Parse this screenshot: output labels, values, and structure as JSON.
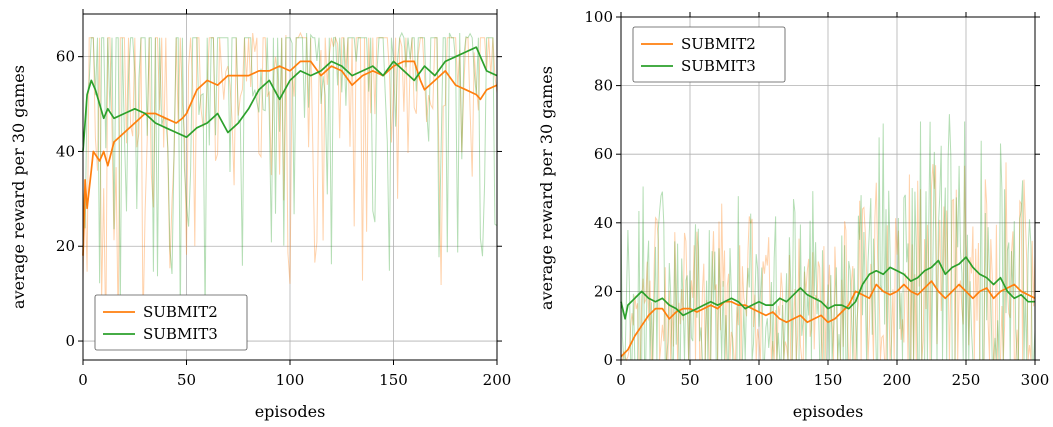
{
  "chart_data": [
    {
      "type": "line",
      "xlabel": "episodes",
      "ylabel": "average reward per 30 games",
      "xlim": [
        0,
        200
      ],
      "ylim": [
        -4,
        69
      ],
      "xticks": [
        0,
        50,
        100,
        150,
        200
      ],
      "yticks": [
        0,
        20,
        40,
        60
      ],
      "grid": true,
      "legend_position": "bottom-left",
      "series": [
        {
          "name": "SUBMIT2",
          "color": "#ff7f0e",
          "smoothed": [
            [
              0,
              18
            ],
            [
              1,
              34
            ],
            [
              2,
              28
            ],
            [
              4,
              36
            ],
            [
              5,
              40
            ],
            [
              8,
              38
            ],
            [
              10,
              40
            ],
            [
              12,
              37
            ],
            [
              15,
              42
            ],
            [
              20,
              44
            ],
            [
              25,
              46
            ],
            [
              30,
              48
            ],
            [
              35,
              48
            ],
            [
              40,
              47
            ],
            [
              45,
              46
            ],
            [
              48,
              47
            ],
            [
              50,
              48
            ],
            [
              55,
              53
            ],
            [
              60,
              55
            ],
            [
              65,
              54
            ],
            [
              70,
              56
            ],
            [
              75,
              56
            ],
            [
              80,
              56
            ],
            [
              85,
              57
            ],
            [
              90,
              57
            ],
            [
              95,
              58
            ],
            [
              100,
              57
            ],
            [
              105,
              59
            ],
            [
              110,
              59
            ],
            [
              115,
              56
            ],
            [
              120,
              58
            ],
            [
              125,
              57
            ],
            [
              130,
              54
            ],
            [
              135,
              56
            ],
            [
              140,
              57
            ],
            [
              145,
              56
            ],
            [
              150,
              58
            ],
            [
              155,
              59
            ],
            [
              160,
              59
            ],
            [
              163,
              55
            ],
            [
              165,
              53
            ],
            [
              170,
              55
            ],
            [
              175,
              57
            ],
            [
              180,
              54
            ],
            [
              185,
              53
            ],
            [
              190,
              52
            ],
            [
              192,
              51
            ],
            [
              195,
              53
            ],
            [
              200,
              54
            ]
          ]
        },
        {
          "name": "SUBMIT3",
          "color": "#2ca02c",
          "smoothed": [
            [
              0,
              40
            ],
            [
              2,
              52
            ],
            [
              4,
              55
            ],
            [
              6,
              53
            ],
            [
              8,
              50
            ],
            [
              10,
              47
            ],
            [
              12,
              49
            ],
            [
              15,
              47
            ],
            [
              20,
              48
            ],
            [
              25,
              49
            ],
            [
              30,
              48
            ],
            [
              35,
              46
            ],
            [
              40,
              45
            ],
            [
              45,
              44
            ],
            [
              50,
              43
            ],
            [
              55,
              45
            ],
            [
              60,
              46
            ],
            [
              65,
              48
            ],
            [
              70,
              44
            ],
            [
              75,
              46
            ],
            [
              80,
              49
            ],
            [
              85,
              53
            ],
            [
              90,
              55
            ],
            [
              95,
              51
            ],
            [
              100,
              55
            ],
            [
              105,
              57
            ],
            [
              110,
              56
            ],
            [
              115,
              57
            ],
            [
              120,
              59
            ],
            [
              125,
              58
            ],
            [
              130,
              56
            ],
            [
              135,
              57
            ],
            [
              140,
              58
            ],
            [
              145,
              56
            ],
            [
              150,
              59
            ],
            [
              155,
              57
            ],
            [
              160,
              55
            ],
            [
              165,
              58
            ],
            [
              170,
              56
            ],
            [
              175,
              59
            ],
            [
              180,
              60
            ],
            [
              185,
              61
            ],
            [
              190,
              62
            ],
            [
              195,
              57
            ],
            [
              200,
              56
            ]
          ]
        }
      ]
    },
    {
      "type": "line",
      "xlabel": "episodes",
      "ylabel": "average reward per 30 games",
      "xlim": [
        0,
        300
      ],
      "ylim": [
        0,
        100
      ],
      "xticks": [
        0,
        50,
        100,
        150,
        200,
        250,
        300
      ],
      "yticks": [
        0,
        20,
        40,
        60,
        80,
        100
      ],
      "grid": true,
      "legend_position": "top-left",
      "series": [
        {
          "name": "SUBMIT2",
          "color": "#ff7f0e",
          "smoothed": [
            [
              0,
              1
            ],
            [
              5,
              3
            ],
            [
              10,
              7
            ],
            [
              15,
              10
            ],
            [
              20,
              13
            ],
            [
              25,
              15
            ],
            [
              30,
              15
            ],
            [
              35,
              12
            ],
            [
              40,
              14
            ],
            [
              45,
              15
            ],
            [
              50,
              15
            ],
            [
              55,
              14
            ],
            [
              60,
              15
            ],
            [
              65,
              16
            ],
            [
              70,
              15
            ],
            [
              75,
              17
            ],
            [
              80,
              17
            ],
            [
              85,
              16
            ],
            [
              90,
              16
            ],
            [
              95,
              15
            ],
            [
              100,
              14
            ],
            [
              105,
              13
            ],
            [
              110,
              14
            ],
            [
              115,
              12
            ],
            [
              120,
              11
            ],
            [
              125,
              12
            ],
            [
              130,
              13
            ],
            [
              135,
              11
            ],
            [
              140,
              12
            ],
            [
              145,
              13
            ],
            [
              150,
              11
            ],
            [
              155,
              12
            ],
            [
              160,
              14
            ],
            [
              165,
              16
            ],
            [
              170,
              20
            ],
            [
              175,
              19
            ],
            [
              180,
              18
            ],
            [
              185,
              22
            ],
            [
              190,
              20
            ],
            [
              195,
              19
            ],
            [
              200,
              20
            ],
            [
              205,
              22
            ],
            [
              210,
              20
            ],
            [
              215,
              19
            ],
            [
              220,
              21
            ],
            [
              225,
              23
            ],
            [
              230,
              20
            ],
            [
              235,
              18
            ],
            [
              240,
              20
            ],
            [
              245,
              22
            ],
            [
              250,
              20
            ],
            [
              255,
              18
            ],
            [
              260,
              20
            ],
            [
              265,
              21
            ],
            [
              270,
              18
            ],
            [
              275,
              20
            ],
            [
              280,
              21
            ],
            [
              285,
              22
            ],
            [
              290,
              20
            ],
            [
              295,
              19
            ],
            [
              300,
              18
            ]
          ]
        },
        {
          "name": "SUBMIT3",
          "color": "#2ca02c",
          "smoothed": [
            [
              0,
              17
            ],
            [
              3,
              12
            ],
            [
              5,
              16
            ],
            [
              10,
              18
            ],
            [
              15,
              20
            ],
            [
              20,
              18
            ],
            [
              25,
              17
            ],
            [
              30,
              18
            ],
            [
              35,
              16
            ],
            [
              40,
              15
            ],
            [
              45,
              13
            ],
            [
              50,
              14
            ],
            [
              55,
              15
            ],
            [
              60,
              16
            ],
            [
              65,
              17
            ],
            [
              70,
              16
            ],
            [
              75,
              17
            ],
            [
              80,
              18
            ],
            [
              85,
              17
            ],
            [
              90,
              15
            ],
            [
              95,
              16
            ],
            [
              100,
              17
            ],
            [
              105,
              16
            ],
            [
              110,
              16
            ],
            [
              115,
              18
            ],
            [
              120,
              17
            ],
            [
              125,
              19
            ],
            [
              130,
              21
            ],
            [
              135,
              19
            ],
            [
              140,
              18
            ],
            [
              145,
              17
            ],
            [
              150,
              15
            ],
            [
              155,
              16
            ],
            [
              160,
              16
            ],
            [
              165,
              15
            ],
            [
              170,
              17
            ],
            [
              175,
              22
            ],
            [
              180,
              25
            ],
            [
              185,
              26
            ],
            [
              190,
              25
            ],
            [
              195,
              27
            ],
            [
              200,
              26
            ],
            [
              205,
              25
            ],
            [
              210,
              23
            ],
            [
              215,
              24
            ],
            [
              220,
              26
            ],
            [
              225,
              27
            ],
            [
              230,
              29
            ],
            [
              235,
              25
            ],
            [
              240,
              27
            ],
            [
              245,
              28
            ],
            [
              250,
              30
            ],
            [
              255,
              27
            ],
            [
              260,
              25
            ],
            [
              265,
              24
            ],
            [
              270,
              22
            ],
            [
              275,
              24
            ],
            [
              280,
              20
            ],
            [
              285,
              18
            ],
            [
              290,
              19
            ],
            [
              295,
              17
            ],
            [
              300,
              17
            ]
          ]
        }
      ]
    }
  ]
}
